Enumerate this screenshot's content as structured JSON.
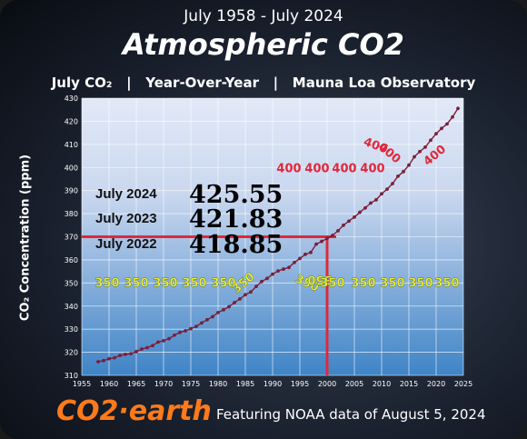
{
  "header": {
    "date_range": "July 1958 - July 2024",
    "title": "Atmospheric CO2",
    "subtitle": "July CO₂   |   Year-Over-Year   |   Mauna Loa Observatory"
  },
  "footer": {
    "brand": "CO2·earth",
    "note": "Featuring NOAA data of August 5, 2024"
  },
  "colors": {
    "plot_bg_top": "#dde6f7",
    "plot_bg_bottom": "#3b7ec2",
    "line": "#7a1f3a",
    "highlight": "#e0283a",
    "label_350": "#f2ef3a",
    "label_400": "#e0283a"
  },
  "chart_data": {
    "type": "line",
    "xlabel": "",
    "ylabel": "CO₂ Concentration (ppm)",
    "xlim": [
      1955,
      2025
    ],
    "ylim": [
      310,
      430
    ],
    "xticks": [
      1955,
      1960,
      1965,
      1970,
      1975,
      1980,
      1985,
      1990,
      1995,
      2000,
      2005,
      2010,
      2015,
      2020,
      2025
    ],
    "yticks": [
      310,
      320,
      330,
      340,
      350,
      360,
      370,
      380,
      390,
      400,
      410,
      420,
      430
    ],
    "grid": true,
    "series": [
      {
        "name": "",
        "x": [
          1958,
          1959,
          1960,
          1961,
          1962,
          1963,
          1964,
          1965,
          1966,
          1967,
          1968,
          1969,
          1970,
          1971,
          1972,
          1973,
          1974,
          1975,
          1976,
          1977,
          1978,
          1979,
          1980,
          1981,
          1982,
          1983,
          1984,
          1985,
          1986,
          1987,
          1988,
          1989,
          1990,
          1991,
          1992,
          1993,
          1994,
          1995,
          1996,
          1997,
          1998,
          1999,
          2000,
          2001,
          2002,
          2003,
          2004,
          2005,
          2006,
          2007,
          2008,
          2009,
          2010,
          2011,
          2012,
          2013,
          2014,
          2015,
          2016,
          2017,
          2018,
          2019,
          2020,
          2021,
          2022,
          2023,
          2024
        ],
        "y": [
          315.9,
          316.4,
          317.2,
          317.6,
          318.6,
          319.1,
          319.4,
          320.3,
          321.4,
          322.0,
          322.9,
          324.4,
          325.0,
          325.9,
          327.4,
          328.6,
          329.3,
          330.2,
          331.2,
          332.7,
          334.1,
          335.4,
          337.2,
          338.4,
          339.7,
          341.5,
          343.1,
          344.9,
          346.1,
          348.5,
          350.6,
          352.0,
          353.8,
          355.2,
          356.0,
          356.7,
          358.9,
          360.6,
          362.4,
          363.2,
          366.8,
          368.0,
          369.3,
          370.6,
          372.6,
          375.0,
          376.8,
          378.5,
          380.6,
          382.5,
          384.6,
          386.0,
          388.6,
          390.6,
          393.0,
          396.2,
          398.2,
          401.0,
          404.6,
          406.9,
          408.8,
          411.8,
          414.6,
          416.9,
          418.85,
          421.83,
          425.55
        ]
      }
    ],
    "annotations": {
      "values": [
        {
          "label": "July 2024",
          "value": "425.55"
        },
        {
          "label": "July 2023",
          "value": "421.83"
        },
        {
          "label": "July 2022",
          "value": "418.85"
        }
      ],
      "left_350": [
        "350",
        "350",
        "350",
        "350",
        "350",
        "350"
      ],
      "right_350": [
        "350",
        "350",
        "350",
        "350",
        "350",
        "350",
        "350",
        "350"
      ],
      "labels_400": [
        "400",
        "400",
        "400",
        "400",
        "400",
        "400",
        "400"
      ],
      "highlight_year": 2000,
      "highlight_value": 370
    }
  }
}
